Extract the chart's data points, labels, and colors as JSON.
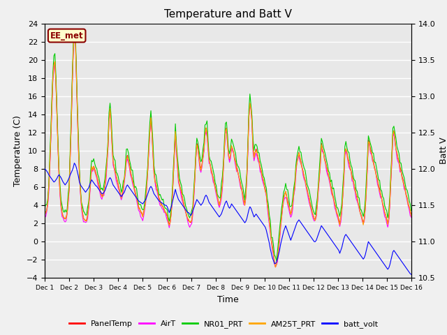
{
  "title": "Temperature and Batt V",
  "xlabel": "Time",
  "ylabel_left": "Temperature (C)",
  "ylabel_right": "Batt V",
  "ylim_left": [
    -4,
    24
  ],
  "ylim_right": [
    10.5,
    14.0
  ],
  "yticks_left": [
    -4,
    -2,
    0,
    2,
    4,
    6,
    8,
    10,
    12,
    14,
    16,
    18,
    20,
    22,
    24
  ],
  "yticks_right": [
    10.5,
    11.0,
    11.5,
    12.0,
    12.5,
    13.0,
    13.5,
    14.0
  ],
  "xtick_labels": [
    "Dec 1",
    "Dec 2",
    "Dec 3",
    "Dec 4",
    "Dec 5",
    "Dec 6",
    "Dec 7",
    "Dec 8",
    "Dec 9",
    "Dec 10",
    "Dec 11",
    "Dec 12",
    "Dec 13",
    "Dec 14",
    "Dec 15",
    "Dec 16"
  ],
  "station_label": "EE_met",
  "station_box_facecolor": "#FFFFCC",
  "station_box_edgecolor": "#8B0000",
  "background_color": "#E8E8E8",
  "grid_color": "#FFFFFF",
  "colors": {
    "PanelTemp": "#FF0000",
    "AirT": "#FF00FF",
    "NR01_PRT": "#00CC00",
    "AM25T_PRT": "#FFA500",
    "batt_volt": "#0000FF"
  },
  "n_points": 360,
  "panel_temp": [
    3.0,
    3.2,
    3.5,
    4.2,
    6.0,
    8.5,
    11.5,
    15.0,
    18.0,
    19.5,
    19.8,
    17.5,
    14.0,
    10.5,
    7.5,
    5.5,
    4.0,
    3.2,
    2.8,
    2.6,
    2.5,
    2.7,
    3.2,
    4.5,
    6.0,
    9.5,
    13.0,
    17.5,
    21.0,
    23.0,
    22.5,
    18.5,
    14.5,
    10.5,
    7.5,
    5.5,
    4.0,
    3.2,
    2.6,
    2.4,
    2.3,
    2.4,
    2.9,
    3.8,
    5.2,
    6.8,
    8.2,
    8.0,
    8.3,
    8.0,
    7.6,
    7.2,
    6.8,
    6.3,
    5.8,
    5.3,
    5.0,
    5.2,
    5.5,
    6.2,
    7.2,
    8.8,
    10.5,
    13.5,
    14.5,
    13.0,
    10.8,
    8.8,
    8.2,
    7.8,
    7.2,
    6.8,
    6.3,
    5.8,
    5.3,
    4.8,
    5.3,
    5.8,
    6.8,
    7.8,
    9.0,
    9.5,
    9.0,
    8.5,
    7.8,
    7.2,
    6.8,
    6.3,
    5.8,
    5.3,
    4.8,
    4.3,
    3.8,
    3.6,
    3.3,
    3.1,
    2.8,
    3.3,
    3.8,
    4.8,
    6.3,
    8.0,
    10.2,
    12.2,
    13.8,
    12.2,
    10.0,
    7.8,
    6.8,
    6.3,
    5.8,
    5.3,
    4.8,
    4.5,
    4.2,
    4.0,
    3.8,
    3.5,
    3.3,
    3.1,
    2.8,
    2.3,
    1.8,
    2.3,
    3.3,
    5.0,
    7.2,
    9.8,
    12.2,
    10.2,
    8.5,
    7.0,
    6.3,
    5.8,
    5.3,
    4.8,
    4.3,
    3.8,
    3.3,
    2.8,
    2.5,
    2.3,
    2.2,
    2.1,
    2.4,
    3.3,
    5.0,
    7.0,
    9.2,
    10.8,
    10.5,
    9.5,
    8.5,
    8.0,
    8.5,
    9.2,
    10.2,
    11.8,
    12.5,
    12.0,
    10.5,
    9.0,
    8.5,
    8.0,
    7.5,
    7.0,
    6.5,
    6.0,
    5.5,
    5.0,
    4.5,
    4.0,
    4.5,
    5.2,
    6.2,
    8.2,
    10.2,
    12.2,
    12.5,
    11.0,
    9.5,
    9.0,
    9.5,
    10.5,
    10.2,
    9.8,
    9.2,
    8.8,
    8.2,
    7.8,
    7.2,
    6.8,
    6.2,
    5.8,
    5.2,
    4.5,
    4.2,
    5.2,
    7.2,
    10.2,
    13.8,
    15.2,
    14.8,
    13.2,
    10.5,
    9.2,
    9.8,
    10.2,
    9.8,
    9.2,
    8.8,
    8.2,
    7.8,
    7.2,
    6.8,
    6.2,
    5.8,
    5.2,
    4.2,
    3.2,
    2.2,
    1.2,
    0.2,
    -0.5,
    -1.2,
    -2.2,
    -2.8,
    -2.5,
    -1.8,
    -0.8,
    0.5,
    1.8,
    2.8,
    3.8,
    4.8,
    5.2,
    5.5,
    5.0,
    4.5,
    4.0,
    3.5,
    3.0,
    3.5,
    4.2,
    5.2,
    6.2,
    7.8,
    8.8,
    9.2,
    9.8,
    9.2,
    8.8,
    8.2,
    7.8,
    7.2,
    6.8,
    6.2,
    5.8,
    5.2,
    4.8,
    4.2,
    3.8,
    3.2,
    2.9,
    2.5,
    2.5,
    3.0,
    4.2,
    5.8,
    7.2,
    8.8,
    10.8,
    10.2,
    9.8,
    9.2,
    8.8,
    8.2,
    7.8,
    7.2,
    6.8,
    6.2,
    5.8,
    5.2,
    4.8,
    4.2,
    3.8,
    3.2,
    2.9,
    2.5,
    2.0,
    2.5,
    3.5,
    5.2,
    7.2,
    9.8,
    10.2,
    9.8,
    9.2,
    8.8,
    8.2,
    7.8,
    7.2,
    6.8,
    6.2,
    5.8,
    5.2,
    4.8,
    4.2,
    3.8,
    3.2,
    2.9,
    2.5,
    2.0,
    2.5,
    3.8,
    5.8,
    8.2,
    11.2,
    10.8,
    10.2,
    9.8,
    9.2,
    8.8,
    8.2,
    7.8,
    7.2,
    6.8,
    6.2,
    5.8,
    5.2,
    4.8,
    4.2,
    3.8,
    3.2,
    2.9,
    2.5,
    2.0,
    2.5,
    4.2,
    6.8,
    9.2,
    11.8,
    12.2,
    11.2,
    10.2,
    9.8,
    9.2,
    8.8,
    8.2,
    7.8,
    7.2,
    6.8,
    6.2,
    5.8,
    5.2,
    4.8,
    4.2,
    3.8,
    3.3,
    3.0
  ],
  "batt_volt": [
    12.0,
    11.99,
    11.97,
    11.95,
    11.92,
    11.9,
    11.88,
    11.86,
    11.84,
    11.82,
    11.83,
    11.85,
    11.87,
    11.9,
    11.92,
    11.9,
    11.88,
    11.85,
    11.82,
    11.8,
    11.78,
    11.8,
    11.82,
    11.85,
    11.88,
    11.92,
    11.95,
    11.98,
    12.02,
    12.08,
    12.06,
    12.02,
    11.96,
    11.9,
    11.82,
    11.78,
    11.76,
    11.74,
    11.72,
    11.7,
    11.68,
    11.7,
    11.72,
    11.74,
    11.78,
    11.82,
    11.85,
    11.83,
    11.81,
    11.79,
    11.77,
    11.76,
    11.74,
    11.72,
    11.7,
    11.68,
    11.66,
    11.66,
    11.68,
    11.7,
    11.74,
    11.78,
    11.82,
    11.86,
    11.88,
    11.86,
    11.82,
    11.78,
    11.76,
    11.74,
    11.72,
    11.7,
    11.68,
    11.66,
    11.64,
    11.62,
    11.64,
    11.66,
    11.68,
    11.72,
    11.76,
    11.78,
    11.76,
    11.74,
    11.72,
    11.7,
    11.68,
    11.66,
    11.64,
    11.62,
    11.6,
    11.58,
    11.56,
    11.55,
    11.54,
    11.53,
    11.52,
    11.54,
    11.56,
    11.58,
    11.62,
    11.66,
    11.7,
    11.74,
    11.76,
    11.74,
    11.7,
    11.66,
    11.64,
    11.62,
    11.6,
    11.58,
    11.56,
    11.55,
    11.54,
    11.53,
    11.52,
    11.51,
    11.5,
    11.5,
    11.48,
    11.44,
    11.4,
    11.44,
    11.48,
    11.54,
    11.6,
    11.66,
    11.72,
    11.66,
    11.62,
    11.58,
    11.56,
    11.54,
    11.52,
    11.5,
    11.48,
    11.46,
    11.44,
    11.42,
    11.4,
    11.4,
    11.38,
    11.36,
    11.38,
    11.42,
    11.46,
    11.5,
    11.54,
    11.58,
    11.56,
    11.54,
    11.52,
    11.5,
    11.52,
    11.54,
    11.58,
    11.62,
    11.64,
    11.62,
    11.58,
    11.54,
    11.52,
    11.5,
    11.48,
    11.46,
    11.44,
    11.42,
    11.4,
    11.38,
    11.36,
    11.34,
    11.36,
    11.38,
    11.42,
    11.46,
    11.5,
    11.54,
    11.56,
    11.52,
    11.48,
    11.46,
    11.48,
    11.52,
    11.5,
    11.48,
    11.46,
    11.44,
    11.42,
    11.4,
    11.38,
    11.36,
    11.34,
    11.32,
    11.3,
    11.28,
    11.26,
    11.28,
    11.32,
    11.38,
    11.44,
    11.48,
    11.46,
    11.42,
    11.38,
    11.34,
    11.36,
    11.38,
    11.36,
    11.34,
    11.32,
    11.3,
    11.28,
    11.26,
    11.24,
    11.22,
    11.2,
    11.16,
    11.1,
    11.04,
    10.98,
    10.9,
    10.84,
    10.78,
    10.74,
    10.7,
    10.7,
    10.72,
    10.76,
    10.82,
    10.88,
    10.96,
    11.02,
    11.08,
    11.14,
    11.18,
    11.22,
    11.18,
    11.14,
    11.1,
    11.06,
    11.02,
    11.06,
    11.1,
    11.14,
    11.18,
    11.22,
    11.26,
    11.28,
    11.3,
    11.28,
    11.26,
    11.24,
    11.22,
    11.2,
    11.18,
    11.16,
    11.14,
    11.12,
    11.1,
    11.08,
    11.06,
    11.04,
    11.02,
    11.0,
    11.0,
    11.02,
    11.06,
    11.1,
    11.14,
    11.18,
    11.22,
    11.2,
    11.18,
    11.16,
    11.14,
    11.12,
    11.1,
    11.08,
    11.06,
    11.04,
    11.02,
    11.0,
    10.98,
    10.96,
    10.94,
    10.92,
    10.9,
    10.88,
    10.84,
    10.88,
    10.92,
    10.98,
    11.04,
    11.08,
    11.1,
    11.08,
    11.06,
    11.04,
    11.02,
    11.0,
    10.98,
    10.96,
    10.94,
    10.92,
    10.9,
    10.88,
    10.86,
    10.84,
    10.82,
    10.8,
    10.78,
    10.76,
    10.78,
    10.82,
    10.88,
    10.94,
    11.0,
    10.98,
    10.96,
    10.94,
    10.92,
    10.9,
    10.88,
    10.86,
    10.84,
    10.82,
    10.8,
    10.78,
    10.76,
    10.74,
    10.72,
    10.7,
    10.68,
    10.66,
    10.64,
    10.62,
    10.64,
    10.68,
    10.74,
    10.8,
    10.86,
    10.88,
    10.86,
    10.84,
    10.82,
    10.8,
    10.78,
    10.76,
    10.74,
    10.72,
    10.7,
    10.68,
    10.66,
    10.64,
    10.62,
    10.6,
    10.58,
    10.56,
    10.55
  ]
}
